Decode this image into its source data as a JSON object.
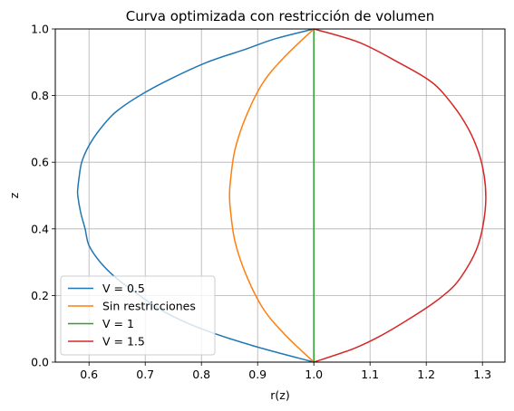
{
  "chart_data": {
    "type": "line",
    "title": "Curva optimizada con restricción de volumen",
    "xlabel": "r(z)",
    "ylabel": "z",
    "xlim": [
      0.54,
      1.34
    ],
    "ylim": [
      0.0,
      1.0
    ],
    "xticks": [
      0.6,
      0.7,
      0.8,
      0.9,
      1.0,
      1.1,
      1.2,
      1.3
    ],
    "xtick_labels": [
      "0.6",
      "0.7",
      "0.8",
      "0.9",
      "1.0",
      "1.1",
      "1.2",
      "1.3"
    ],
    "yticks": [
      0.0,
      0.2,
      0.4,
      0.6,
      0.8,
      1.0
    ],
    "ytick_labels": [
      "0.0",
      "0.2",
      "0.4",
      "0.6",
      "0.8",
      "1.0"
    ],
    "grid": true,
    "legend_position": "lower-left",
    "series": [
      {
        "name": "V = 0.5",
        "color": "#1f77b4",
        "points": [
          [
            1.0,
            0.0
          ],
          [
            0.89,
            0.05
          ],
          [
            0.8,
            0.1
          ],
          [
            0.735,
            0.15
          ],
          [
            0.69,
            0.2
          ],
          [
            0.65,
            0.25
          ],
          [
            0.62,
            0.3
          ],
          [
            0.6,
            0.35
          ],
          [
            0.593,
            0.4
          ],
          [
            0.585,
            0.45
          ],
          [
            0.58,
            0.5
          ],
          [
            0.58,
            0.52
          ],
          [
            0.582,
            0.55
          ],
          [
            0.587,
            0.6
          ],
          [
            0.6,
            0.65
          ],
          [
            0.62,
            0.7
          ],
          [
            0.647,
            0.75
          ],
          [
            0.69,
            0.8
          ],
          [
            0.745,
            0.85
          ],
          [
            0.81,
            0.9
          ],
          [
            0.88,
            0.94
          ],
          [
            0.93,
            0.97
          ],
          [
            1.0,
            1.0
          ]
        ]
      },
      {
        "name": "Sin restricciones",
        "color": "#ff7f0e",
        "points": [
          [
            1.0,
            0.0
          ],
          [
            0.95,
            0.08
          ],
          [
            0.91,
            0.16
          ],
          [
            0.88,
            0.26
          ],
          [
            0.86,
            0.36
          ],
          [
            0.852,
            0.45
          ],
          [
            0.85,
            0.5
          ],
          [
            0.852,
            0.55
          ],
          [
            0.86,
            0.64
          ],
          [
            0.88,
            0.74
          ],
          [
            0.91,
            0.84
          ],
          [
            0.95,
            0.92
          ],
          [
            1.0,
            1.0
          ]
        ]
      },
      {
        "name": "V = 1",
        "color": "#2ca02c",
        "points": [
          [
            1.0,
            0.0
          ],
          [
            1.0,
            1.0
          ]
        ]
      },
      {
        "name": "V = 1.5",
        "color": "#d62728",
        "points": [
          [
            1.0,
            0.0
          ],
          [
            1.07,
            0.04
          ],
          [
            1.12,
            0.08
          ],
          [
            1.17,
            0.13
          ],
          [
            1.215,
            0.18
          ],
          [
            1.25,
            0.23
          ],
          [
            1.275,
            0.29
          ],
          [
            1.292,
            0.35
          ],
          [
            1.302,
            0.42
          ],
          [
            1.306,
            0.49
          ],
          [
            1.303,
            0.56
          ],
          [
            1.293,
            0.63
          ],
          [
            1.275,
            0.7
          ],
          [
            1.248,
            0.77
          ],
          [
            1.21,
            0.84
          ],
          [
            1.15,
            0.9
          ],
          [
            1.08,
            0.96
          ],
          [
            1.0,
            1.0
          ]
        ]
      }
    ]
  }
}
